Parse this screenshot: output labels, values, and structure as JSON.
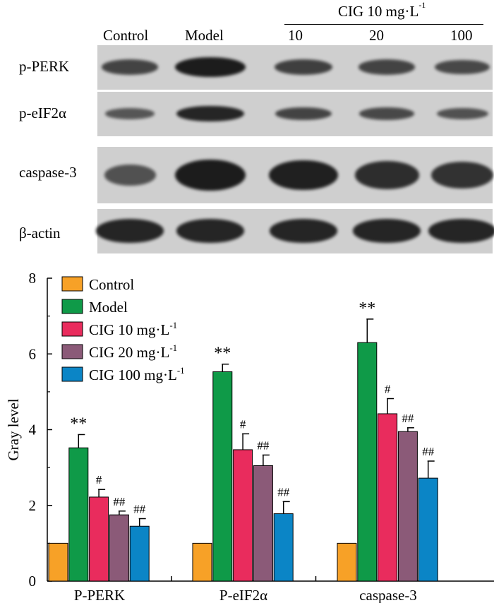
{
  "blot": {
    "headers": {
      "control": "Control",
      "model": "Model"
    },
    "cig_group": {
      "label": "CIG 10 mg·L",
      "sup": "-1",
      "doses": [
        "10",
        "20",
        "100"
      ]
    },
    "rows": [
      {
        "name": "p-PERK",
        "intensity": [
          0.55,
          1.0,
          0.6,
          0.55,
          0.5
        ]
      },
      {
        "name": "p-eIF2α",
        "intensity": [
          0.35,
          0.9,
          0.55,
          0.5,
          0.4
        ]
      },
      {
        "name": "caspase-3",
        "intensity": [
          0.4,
          1.0,
          0.95,
          0.8,
          0.75
        ]
      },
      {
        "name": "β-actin",
        "intensity": [
          0.9,
          0.9,
          0.9,
          0.9,
          0.9
        ]
      }
    ]
  },
  "chart_data": {
    "type": "bar",
    "categories": [
      "P-PERK",
      "P-eIF2α",
      "caspase-3"
    ],
    "ylabel": "Gray level",
    "ylim": [
      0,
      8
    ],
    "yticks": [
      "0",
      "2",
      "4",
      "6",
      "8"
    ],
    "legend_position": "top-left",
    "series": [
      {
        "name": "Control",
        "legend": "Control",
        "legend_sup": "",
        "color": "#f7a127",
        "values": [
          1.0,
          1.0,
          1.0
        ],
        "errors": [
          0,
          0,
          0
        ],
        "marks": [
          "",
          "",
          ""
        ]
      },
      {
        "name": "Model",
        "legend": "Model",
        "legend_sup": "",
        "color": "#0f9a48",
        "values": [
          3.52,
          5.53,
          6.3
        ],
        "errors": [
          0.35,
          0.2,
          0.62
        ],
        "marks": [
          "**",
          "**",
          "**"
        ]
      },
      {
        "name": "CIG 10 mg·L-1",
        "legend": "CIG 10 mg·L",
        "legend_sup": "-1",
        "color": "#e92c5d",
        "values": [
          2.22,
          3.47,
          4.42
        ],
        "errors": [
          0.2,
          0.42,
          0.4
        ],
        "marks": [
          "#",
          "#",
          "#"
        ]
      },
      {
        "name": "CIG 20 mg·L-1",
        "legend": "CIG 20 mg·L",
        "legend_sup": "-1",
        "color": "#8b5a78",
        "values": [
          1.75,
          3.05,
          3.95
        ],
        "errors": [
          0.1,
          0.28,
          0.1
        ],
        "marks": [
          "##",
          "##",
          "##"
        ]
      },
      {
        "name": "CIG 100 mg·L-1",
        "legend": "CIG 100 mg·L",
        "legend_sup": "-1",
        "color": "#0b85c6",
        "values": [
          1.45,
          1.78,
          2.72
        ],
        "errors": [
          0.2,
          0.32,
          0.45
        ],
        "marks": [
          "##",
          "##",
          "##"
        ]
      }
    ]
  }
}
